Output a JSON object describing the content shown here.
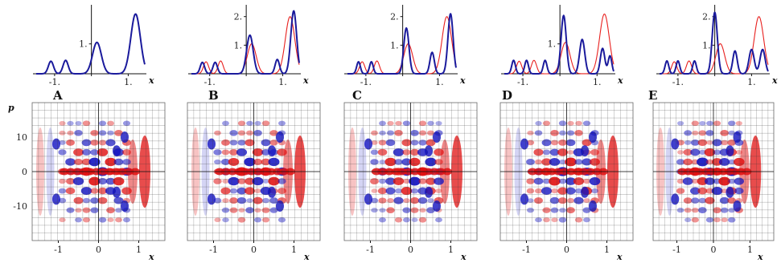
{
  "chart_data": [
    {
      "type": "line",
      "panel": "A",
      "xlabel": "x",
      "x_ticks": [
        "-1.",
        "1."
      ],
      "y_ticks": [
        "1."
      ],
      "xlim": [
        -1.5,
        1.45
      ],
      "ylim": [
        0,
        2.2
      ],
      "series": [
        {
          "color": "#e8201e",
          "peaks": [
            [
              -1.1,
              0.42
            ],
            [
              -0.7,
              0.45
            ],
            [
              0.15,
              1.05
            ],
            [
              1.2,
              2.0
            ]
          ],
          "widths": [
            0.07,
            0.07,
            0.12,
            0.13
          ]
        },
        {
          "color": "#1a1a9c",
          "peaks": [
            [
              -1.1,
              0.42
            ],
            [
              -0.7,
              0.45
            ],
            [
              0.15,
              1.05
            ],
            [
              1.2,
              2.0
            ]
          ],
          "widths": [
            0.07,
            0.07,
            0.12,
            0.13
          ]
        }
      ]
    },
    {
      "type": "line",
      "panel": "B",
      "xlabel": "x",
      "x_ticks": [
        "-1.",
        "1."
      ],
      "y_ticks": [
        "1.",
        "2."
      ],
      "xlim": [
        -1.5,
        1.45
      ],
      "ylim": [
        0,
        2.3
      ],
      "series": [
        {
          "color": "#e8201e",
          "peaks": [
            [
              -1.1,
              0.42
            ],
            [
              -0.7,
              0.45
            ],
            [
              0.15,
              1.05
            ],
            [
              1.2,
              2.0
            ]
          ],
          "widths": [
            0.07,
            0.07,
            0.12,
            0.13
          ]
        },
        {
          "color": "#1a1a9c",
          "peaks": [
            [
              -1.2,
              0.4
            ],
            [
              -0.85,
              0.4
            ],
            [
              0.1,
              1.35
            ],
            [
              0.85,
              0.5
            ],
            [
              1.3,
              2.2
            ]
          ],
          "widths": [
            0.06,
            0.06,
            0.09,
            0.06,
            0.08
          ]
        }
      ]
    },
    {
      "type": "line",
      "panel": "C",
      "xlabel": "x",
      "x_ticks": [
        "-1.",
        "1."
      ],
      "y_ticks": [
        "1.",
        "2."
      ],
      "xlim": [
        -1.5,
        1.45
      ],
      "ylim": [
        0,
        2.3
      ],
      "series": [
        {
          "color": "#e8201e",
          "peaks": [
            [
              -1.1,
              0.42
            ],
            [
              -0.7,
              0.45
            ],
            [
              0.15,
              1.05
            ],
            [
              1.2,
              2.0
            ]
          ],
          "widths": [
            0.07,
            0.07,
            0.12,
            0.13
          ]
        },
        {
          "color": "#1a1a9c",
          "peaks": [
            [
              -1.2,
              0.42
            ],
            [
              -0.85,
              0.42
            ],
            [
              0.1,
              1.6
            ],
            [
              0.8,
              0.75
            ],
            [
              1.3,
              2.1
            ]
          ],
          "widths": [
            0.05,
            0.05,
            0.07,
            0.06,
            0.07
          ]
        }
      ]
    },
    {
      "type": "line",
      "panel": "D",
      "xlabel": "x",
      "x_ticks": [
        "-1.",
        "1."
      ],
      "y_ticks": [
        "1."
      ],
      "xlim": [
        -1.5,
        1.45
      ],
      "ylim": [
        0,
        2.2
      ],
      "series": [
        {
          "color": "#e8201e",
          "peaks": [
            [
              -1.1,
              0.42
            ],
            [
              -0.7,
              0.45
            ],
            [
              0.15,
              1.05
            ],
            [
              1.2,
              2.0
            ]
          ],
          "widths": [
            0.07,
            0.07,
            0.12,
            0.13
          ]
        },
        {
          "color": "#1a1a9c",
          "peaks": [
            [
              -1.25,
              0.45
            ],
            [
              -0.9,
              0.45
            ],
            [
              -0.4,
              0.45
            ],
            [
              0.1,
              1.95
            ],
            [
              0.6,
              1.15
            ],
            [
              1.15,
              0.85
            ],
            [
              1.35,
              0.6
            ]
          ],
          "widths": [
            0.05,
            0.05,
            0.05,
            0.07,
            0.07,
            0.06,
            0.05
          ]
        }
      ]
    },
    {
      "type": "line",
      "panel": "E",
      "xlabel": "x",
      "x_ticks": [
        "-1.",
        "1."
      ],
      "y_ticks": [
        "1.",
        "2."
      ],
      "xlim": [
        -1.5,
        1.45
      ],
      "ylim": [
        0,
        2.3
      ],
      "series": [
        {
          "color": "#e8201e",
          "peaks": [
            [
              -1.1,
              0.42
            ],
            [
              -0.7,
              0.45
            ],
            [
              0.15,
              1.05
            ],
            [
              1.2,
              2.0
            ]
          ],
          "widths": [
            0.07,
            0.07,
            0.12,
            0.13
          ]
        },
        {
          "color": "#1a1a9c",
          "peaks": [
            [
              -1.3,
              0.45
            ],
            [
              -1.0,
              0.45
            ],
            [
              -0.55,
              0.45
            ],
            [
              0.0,
              2.15
            ],
            [
              0.55,
              0.8
            ],
            [
              1.0,
              0.85
            ],
            [
              1.3,
              0.85
            ]
          ],
          "widths": [
            0.05,
            0.05,
            0.05,
            0.07,
            0.06,
            0.07,
            0.07
          ]
        }
      ]
    },
    {
      "type": "heatmap",
      "panel": "A",
      "xlabel": "x",
      "ylabel": "p",
      "x_ticks": [
        "-1",
        "0",
        "1"
      ],
      "y_ticks": [
        "10",
        "0",
        "-10"
      ],
      "xlim": [
        -1.65,
        1.65
      ],
      "ylim": [
        -20,
        20
      ],
      "colors": {
        "positive": "#e01010",
        "negative": "#1010c0"
      }
    },
    {
      "type": "heatmap",
      "panel": "B",
      "xlabel": "x",
      "x_ticks": [
        "-1",
        "0",
        "1"
      ],
      "xlim": [
        -1.65,
        1.65
      ],
      "ylim": [
        -20,
        20
      ],
      "colors": {
        "positive": "#e01010",
        "negative": "#1010c0"
      }
    },
    {
      "type": "heatmap",
      "panel": "C",
      "xlabel": "x",
      "x_ticks": [
        "-1",
        "0",
        "1"
      ],
      "xlim": [
        -1.65,
        1.65
      ],
      "ylim": [
        -20,
        20
      ],
      "colors": {
        "positive": "#e01010",
        "negative": "#1010c0"
      }
    },
    {
      "type": "heatmap",
      "panel": "D",
      "xlabel": "x",
      "x_ticks": [
        "-1",
        "0",
        "1"
      ],
      "xlim": [
        -1.65,
        1.65
      ],
      "ylim": [
        -20,
        20
      ],
      "colors": {
        "positive": "#e01010",
        "negative": "#1010c0"
      }
    },
    {
      "type": "heatmap",
      "panel": "E",
      "xlabel": "x",
      "x_ticks": [
        "-1",
        "0",
        "1"
      ],
      "xlim": [
        -1.65,
        1.65
      ],
      "ylim": [
        -20,
        20
      ],
      "colors": {
        "positive": "#e01010",
        "negative": "#1010c0"
      }
    }
  ],
  "panel_letters": [
    "A",
    "B",
    "C",
    "D",
    "E"
  ]
}
